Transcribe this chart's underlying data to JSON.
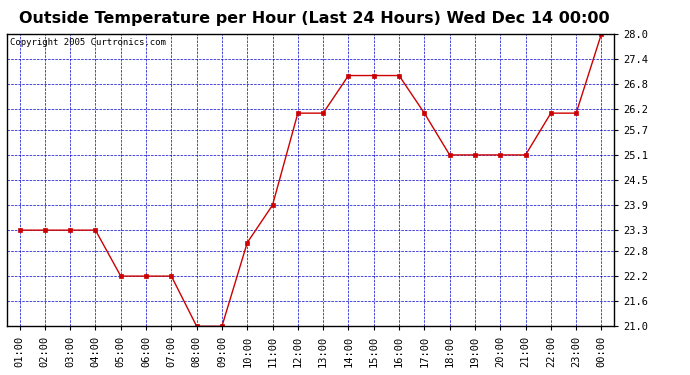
{
  "title": "Outside Temperature per Hour (Last 24 Hours) Wed Dec 14 00:00",
  "copyright": "Copyright 2005 Curtronics.com",
  "x_labels": [
    "01:00",
    "02:00",
    "03:00",
    "04:00",
    "05:00",
    "06:00",
    "07:00",
    "08:00",
    "09:00",
    "10:00",
    "11:00",
    "12:00",
    "13:00",
    "14:00",
    "15:00",
    "16:00",
    "17:00",
    "18:00",
    "19:00",
    "20:00",
    "21:00",
    "22:00",
    "23:00",
    "00:00"
  ],
  "y_values": [
    23.3,
    23.3,
    23.3,
    23.3,
    22.2,
    22.2,
    22.2,
    21.0,
    21.0,
    23.0,
    23.9,
    26.1,
    26.1,
    27.0,
    27.0,
    27.0,
    26.1,
    25.1,
    25.1,
    25.1,
    25.1,
    26.1,
    26.1,
    28.0
  ],
  "y_min": 21.0,
  "y_max": 28.0,
  "y_ticks": [
    21.0,
    21.6,
    22.2,
    22.8,
    23.3,
    23.9,
    24.5,
    25.1,
    25.7,
    26.2,
    26.8,
    27.4,
    28.0
  ],
  "line_color": "#cc0000",
  "marker_color": "#cc0000",
  "grid_color": "#0000cc",
  "bg_color": "#ffffff",
  "plot_bg_color": "#ffffff",
  "title_fontsize": 11.5,
  "tick_fontsize": 7.5,
  "copyright_fontsize": 6.5
}
